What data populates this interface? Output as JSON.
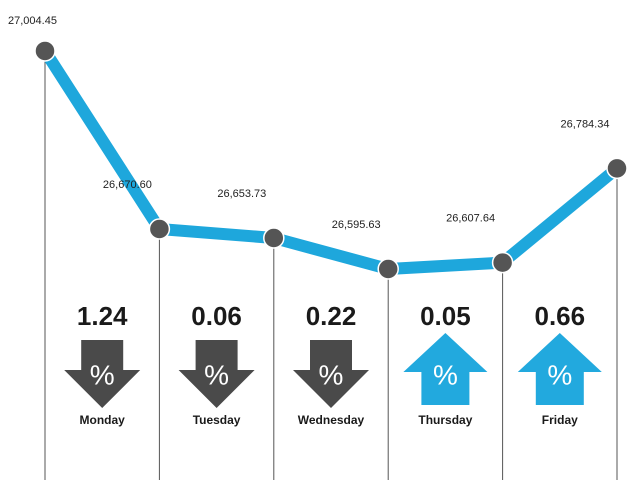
{
  "chart_data": {
    "type": "line",
    "categories": [
      null,
      "Monday",
      "Tuesday",
      "Wednesday",
      "Thursday",
      "Friday"
    ],
    "values": [
      27004.45,
      26670.6,
      26653.73,
      26595.63,
      26607.64,
      26784.34
    ],
    "value_labels": [
      "27,004.45",
      "26,670.60",
      "26,653.73",
      "26,595.63",
      "26,607.64",
      "26,784.34"
    ],
    "changes": [
      null,
      1.24,
      0.06,
      0.22,
      0.05,
      0.66
    ],
    "directions": [
      null,
      "down",
      "down",
      "down",
      "up",
      "up"
    ],
    "change_symbol": "%",
    "ylim": [
      26200,
      27100
    ],
    "color": "#1ea7dc",
    "point_color": "#555555",
    "down_color": "#4a4a4a",
    "up_color": "#22a9de"
  }
}
